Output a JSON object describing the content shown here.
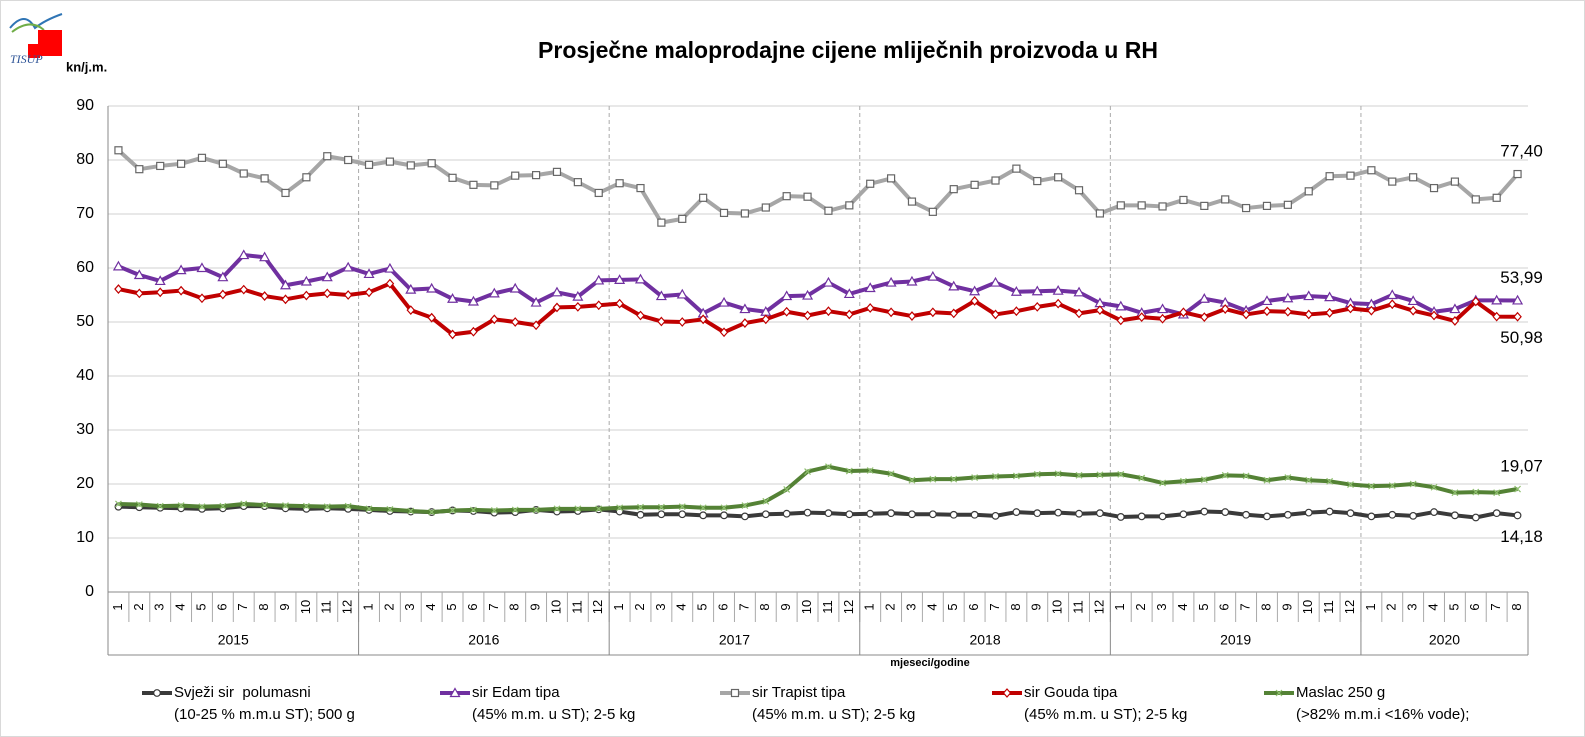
{
  "chart_data": {
    "type": "line",
    "logo_text": "TISUP",
    "title": "Prosječne maloprodajne cijene mliječnih proizvoda u RH",
    "y_label": "kn/j.m.",
    "x_label": "mjeseci/godine",
    "ylim": [
      0,
      90
    ],
    "yticks": [
      0,
      10,
      20,
      30,
      40,
      50,
      60,
      70,
      80,
      90
    ],
    "grid": true,
    "legend": "bottom",
    "years": [
      "2015",
      "2016",
      "2017",
      "2018",
      "2019",
      "2020"
    ],
    "categories": [
      "1",
      "2",
      "3",
      "4",
      "5",
      "6",
      "7",
      "8",
      "9",
      "10",
      "11",
      "12",
      "1",
      "2",
      "3",
      "4",
      "5",
      "6",
      "7",
      "8",
      "9",
      "10",
      "11",
      "12",
      "1",
      "2",
      "3",
      "4",
      "5",
      "6",
      "7",
      "8",
      "9",
      "10",
      "11",
      "12",
      "1",
      "2",
      "3",
      "4",
      "5",
      "6",
      "7",
      "8",
      "9",
      "10",
      "11",
      "12",
      "1",
      "2",
      "3",
      "4",
      "5",
      "6",
      "7",
      "8",
      "9",
      "10",
      "11",
      "12",
      "1",
      "2",
      "3",
      "4",
      "5",
      "6",
      "7",
      "8"
    ],
    "series": [
      {
        "name": "Svježi sir  polumasni\n(10-25 % m.m.u ST); 500 g",
        "color": "#3a3a3a",
        "marker": "circle",
        "end_label": "14,18",
        "end_label_side": "below",
        "values": [
          15.8,
          15.7,
          15.6,
          15.5,
          15.4,
          15.5,
          15.9,
          15.9,
          15.5,
          15.4,
          15.5,
          15.4,
          15.2,
          15.0,
          14.9,
          14.8,
          15.1,
          15.0,
          14.7,
          14.8,
          15.2,
          14.9,
          15.0,
          15.3,
          14.9,
          14.3,
          14.4,
          14.4,
          14.2,
          14.2,
          14.0,
          14.4,
          14.5,
          14.7,
          14.6,
          14.4,
          14.5,
          14.6,
          14.4,
          14.4,
          14.3,
          14.3,
          14.1,
          14.8,
          14.6,
          14.7,
          14.5,
          14.6,
          13.9,
          14.0,
          14.0,
          14.4,
          14.9,
          14.8,
          14.3,
          14.0,
          14.3,
          14.7,
          14.9,
          14.6,
          14.0,
          14.3,
          14.1,
          14.8,
          14.2,
          13.8,
          14.6,
          14.18
        ]
      },
      {
        "name": "sir Edam tipa\n(45% m.m. u ST); 2-5 kg",
        "color": "#7030a0",
        "marker": "triangle",
        "end_label": "53,99",
        "end_label_side": "above",
        "values": [
          60.3,
          58.7,
          57.6,
          59.6,
          60.0,
          58.3,
          62.4,
          62.0,
          56.8,
          57.5,
          58.3,
          60.1,
          58.9,
          59.9,
          56.0,
          56.2,
          54.3,
          53.8,
          55.3,
          56.2,
          53.6,
          55.5,
          54.7,
          57.7,
          57.8,
          57.9,
          54.8,
          55.1,
          51.6,
          53.6,
          52.4,
          51.9,
          54.8,
          54.9,
          57.3,
          55.2,
          56.3,
          57.3,
          57.5,
          58.4,
          56.6,
          55.7,
          57.3,
          55.6,
          55.7,
          55.8,
          55.5,
          53.5,
          52.9,
          51.7,
          52.4,
          51.4,
          54.3,
          53.6,
          52.1,
          53.9,
          54.4,
          54.8,
          54.6,
          53.5,
          53.3,
          55.0,
          53.9,
          51.9,
          52.4,
          54.0,
          54.0,
          53.99
        ]
      },
      {
        "name": "sir Trapist tipa\n(45% m.m. u ST); 2-5 kg",
        "color": "#a6a6a6",
        "marker": "square",
        "end_label": "77,40",
        "end_label_side": "above",
        "values": [
          81.8,
          78.3,
          78.9,
          79.3,
          80.4,
          79.3,
          77.5,
          76.6,
          73.9,
          76.8,
          80.7,
          80.0,
          79.1,
          79.7,
          79.0,
          79.4,
          76.7,
          75.4,
          75.3,
          77.1,
          77.2,
          77.8,
          75.9,
          73.9,
          75.7,
          74.8,
          68.4,
          69.1,
          73.0,
          70.2,
          70.1,
          71.2,
          73.3,
          73.2,
          70.6,
          71.6,
          75.6,
          76.6,
          72.3,
          70.4,
          74.6,
          75.4,
          76.2,
          78.4,
          76.1,
          76.8,
          74.4,
          70.1,
          71.6,
          71.6,
          71.4,
          72.6,
          71.5,
          72.7,
          71.1,
          71.5,
          71.7,
          74.2,
          77.0,
          77.1,
          78.1,
          76.0,
          76.8,
          74.8,
          76.0,
          72.7,
          73.0,
          77.4
        ]
      },
      {
        "name": "sir Gouda tipa\n(45% m.m. u ST); 2-5 kg",
        "color": "#c00000",
        "marker": "diamond",
        "end_label": "50,98",
        "end_label_side": "below",
        "values": [
          56.1,
          55.3,
          55.5,
          55.8,
          54.4,
          55.1,
          56.0,
          54.8,
          54.2,
          54.9,
          55.3,
          55.0,
          55.5,
          57.1,
          52.2,
          50.8,
          47.7,
          48.2,
          50.5,
          50.0,
          49.4,
          52.7,
          52.8,
          53.1,
          53.4,
          51.2,
          50.1,
          50.0,
          50.5,
          48.1,
          49.8,
          50.5,
          51.9,
          51.2,
          52.0,
          51.4,
          52.6,
          51.8,
          51.1,
          51.8,
          51.6,
          53.9,
          51.4,
          52.0,
          52.8,
          53.4,
          51.6,
          52.2,
          50.3,
          50.9,
          50.6,
          51.8,
          50.9,
          52.4,
          51.4,
          52.0,
          51.9,
          51.4,
          51.7,
          52.5,
          52.1,
          53.3,
          52.1,
          51.2,
          50.2,
          53.8,
          51.0,
          50.98
        ]
      },
      {
        "name": "Maslac 250 g\n(>82% m.m.i <16% vode);",
        "color": "#548235",
        "marker": "cross",
        "end_label": "19,07",
        "end_label_side": "above",
        "values": [
          16.3,
          16.2,
          15.9,
          16.0,
          15.8,
          15.9,
          16.3,
          16.1,
          16.0,
          15.9,
          15.8,
          15.9,
          15.4,
          15.3,
          15.0,
          14.8,
          15.1,
          15.2,
          15.1,
          15.2,
          15.2,
          15.4,
          15.4,
          15.4,
          15.6,
          15.7,
          15.7,
          15.8,
          15.6,
          15.6,
          16.0,
          16.8,
          19.0,
          22.3,
          23.2,
          22.4,
          22.5,
          21.9,
          20.7,
          20.9,
          20.9,
          21.2,
          21.4,
          21.5,
          21.8,
          21.9,
          21.6,
          21.7,
          21.8,
          21.1,
          20.2,
          20.5,
          20.8,
          21.6,
          21.5,
          20.7,
          21.2,
          20.7,
          20.5,
          19.9,
          19.6,
          19.7,
          20.0,
          19.4,
          18.4,
          18.5,
          18.4,
          19.07
        ]
      }
    ]
  }
}
